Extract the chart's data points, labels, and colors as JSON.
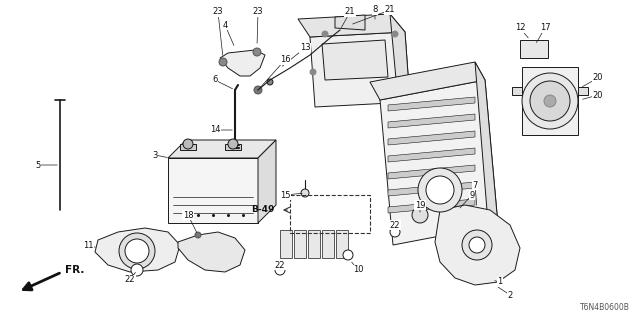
{
  "bg_color": "#ffffff",
  "line_color": "#1a1a1a",
  "text_color": "#111111",
  "diagram_code": "T6N4B0600B",
  "lw": 0.7,
  "label_fontsize": 6.0,
  "fr_text": "FR."
}
